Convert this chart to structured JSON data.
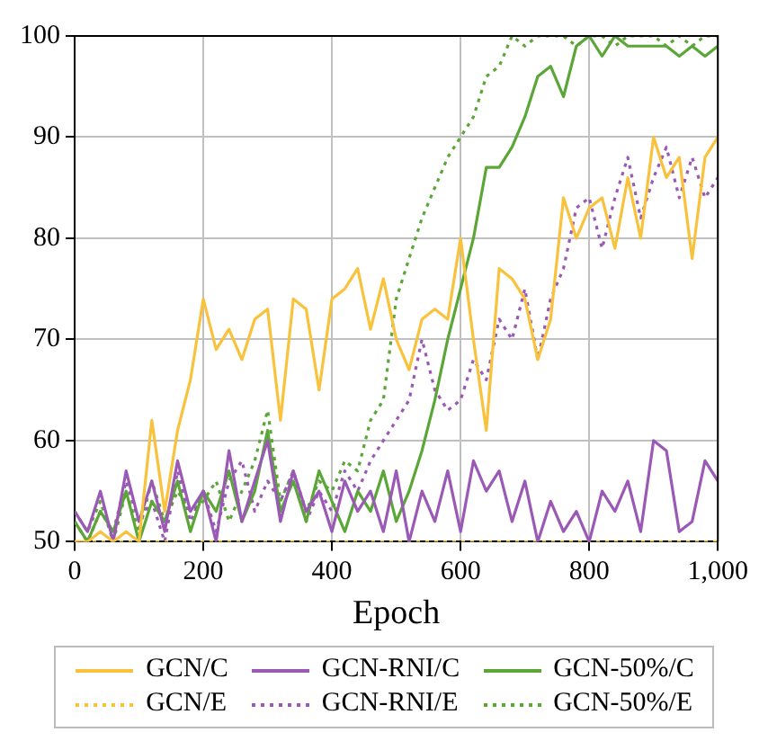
{
  "chart_data": {
    "type": "line",
    "xlabel": "Epoch",
    "x": [
      0,
      20,
      40,
      60,
      80,
      100,
      120,
      140,
      160,
      180,
      200,
      220,
      240,
      260,
      280,
      300,
      320,
      340,
      360,
      380,
      400,
      420,
      440,
      460,
      480,
      500,
      520,
      540,
      560,
      580,
      600,
      620,
      640,
      660,
      680,
      700,
      720,
      740,
      760,
      780,
      800,
      820,
      840,
      860,
      880,
      900,
      920,
      940,
      960,
      980,
      1000
    ],
    "series": [
      {
        "name": "GCN/C",
        "color": "#f9c23c",
        "line_style": "solid",
        "values": [
          50,
          50,
          51,
          50,
          51,
          50,
          62,
          53,
          61,
          66,
          74,
          69,
          71,
          68,
          72,
          73,
          62,
          74,
          73,
          65,
          74,
          75,
          77,
          71,
          76,
          70,
          67,
          72,
          73,
          72,
          80,
          70,
          61,
          77,
          76,
          74,
          68,
          72,
          84,
          80,
          83,
          84,
          79,
          86,
          80,
          90,
          86,
          88,
          78,
          88,
          90
        ]
      },
      {
        "name": "GCN-RNI/C",
        "color": "#9b59b6",
        "line_style": "solid",
        "values": [
          53,
          51,
          55,
          50,
          57,
          52,
          56,
          51,
          58,
          53,
          55,
          50,
          59,
          52,
          56,
          60,
          52,
          57,
          53,
          55,
          51,
          56,
          53,
          55,
          51,
          57,
          50,
          55,
          52,
          57,
          51,
          58,
          55,
          57,
          52,
          56,
          50,
          54,
          51,
          53,
          50,
          55,
          53,
          56,
          51,
          60,
          59,
          51,
          52,
          58,
          56
        ]
      },
      {
        "name": "GCN-50%/C",
        "color": "#5aa636",
        "line_style": "solid",
        "values": [
          52,
          50,
          53,
          51,
          55,
          50,
          54,
          52,
          56,
          51,
          55,
          53,
          57,
          52,
          55,
          61,
          53,
          56,
          52,
          57,
          54,
          51,
          55,
          53,
          57,
          52,
          55,
          59,
          64,
          70,
          75,
          80,
          87,
          87,
          89,
          92,
          96,
          97,
          94,
          99,
          100,
          98,
          100,
          99,
          99,
          99,
          99,
          98,
          99,
          98,
          99
        ]
      },
      {
        "name": "GCN/E",
        "color": "#f9c23c",
        "line_style": "dotted",
        "values": [
          50,
          50,
          50,
          50,
          50,
          50,
          50,
          50,
          50,
          50,
          50,
          50,
          50,
          50,
          50,
          50,
          50,
          50,
          50,
          50,
          50,
          50,
          50,
          50,
          50,
          50,
          50,
          50,
          50,
          50,
          50,
          50,
          50,
          50,
          50,
          50,
          50,
          50,
          50,
          50,
          50,
          50,
          50,
          50,
          50,
          50,
          50,
          50,
          50,
          50,
          50
        ]
      },
      {
        "name": "GCN-RNI/E",
        "color": "#9b59b6",
        "line_style": "dotted",
        "values": [
          52,
          50,
          53,
          51,
          56,
          52,
          54,
          50,
          57,
          52,
          55,
          51,
          56,
          58,
          53,
          56,
          54,
          57,
          52,
          55,
          53,
          57,
          55,
          58,
          60,
          62,
          64,
          70,
          65,
          63,
          64,
          68,
          66,
          72,
          70,
          75,
          68,
          74,
          77,
          83,
          84,
          79,
          84,
          88,
          82,
          86,
          89,
          84,
          88,
          84,
          86
        ]
      },
      {
        "name": "GCN-50%/E",
        "color": "#5aa636",
        "line_style": "dotted",
        "values": [
          53,
          51,
          54,
          50,
          55,
          51,
          56,
          52,
          55,
          53,
          54,
          56,
          52,
          55,
          58,
          63,
          54,
          57,
          53,
          56,
          55,
          58,
          57,
          62,
          64,
          74,
          78,
          82,
          85,
          88,
          90,
          92,
          96,
          97,
          100,
          99,
          100,
          100,
          100,
          99,
          100,
          100,
          99,
          100,
          100,
          100,
          99,
          100,
          99,
          100,
          100
        ]
      }
    ],
    "xlim": [
      0,
      1000
    ],
    "xticks": [
      0,
      200,
      400,
      600,
      800,
      {
        "value": 1000,
        "label": "1,000"
      }
    ],
    "ylim": [
      50,
      100
    ],
    "yticks": [
      50,
      60,
      70,
      80,
      90,
      100
    ],
    "grid": true,
    "legend": "bottom",
    "marker": "none"
  }
}
